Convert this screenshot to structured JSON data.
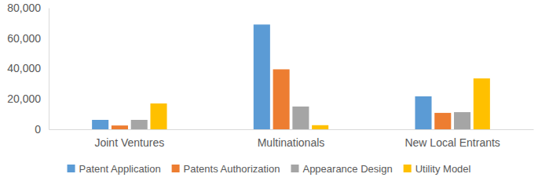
{
  "chart_data": {
    "type": "bar",
    "categories": [
      "Joint Ventures",
      "Multinationals",
      "New Local Entrants"
    ],
    "series": [
      {
        "name": "Patent Application",
        "color": "#5b9bd5",
        "values": [
          6200,
          69000,
          21700
        ]
      },
      {
        "name": "Patents Authorization",
        "color": "#ed7d31",
        "values": [
          2500,
          39500,
          10800
        ]
      },
      {
        "name": "Appearance Design",
        "color": "#a5a5a5",
        "values": [
          6200,
          15000,
          11300
        ]
      },
      {
        "name": "Utility Model",
        "color": "#ffc000",
        "values": [
          17000,
          2700,
          33500
        ]
      }
    ],
    "ylim": [
      0,
      80000
    ],
    "yticks": [
      0,
      {
        "value": 20000,
        "label": "20,000"
      },
      {
        "value": 40000,
        "label": "40,000"
      },
      {
        "value": 60000,
        "label": "60,000"
      },
      {
        "value": 80000,
        "label": "80,000"
      }
    ],
    "grid": false,
    "legend": "bottom"
  }
}
